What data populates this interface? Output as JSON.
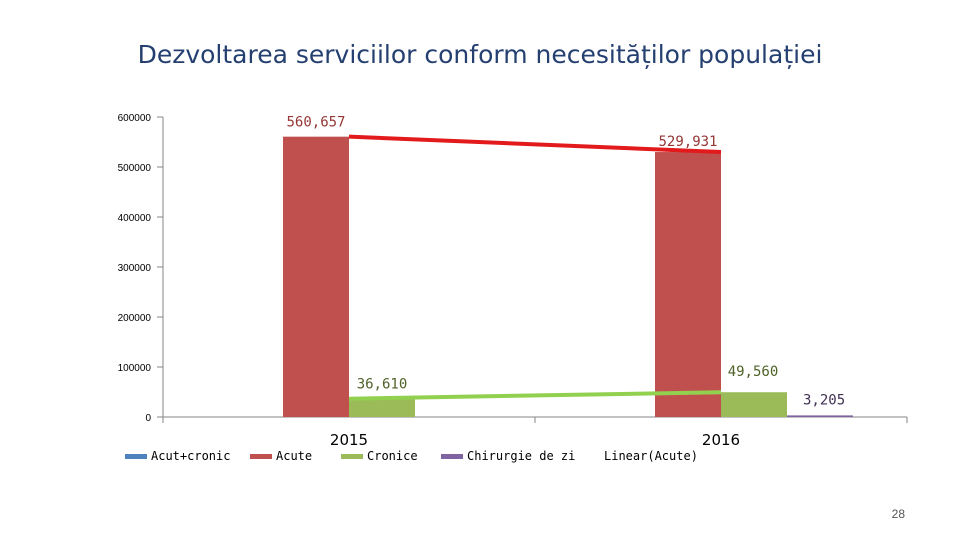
{
  "title": "Dezvoltarea serviciilor conform necesităților populației",
  "page_number": "28",
  "chart_data": {
    "type": "bar",
    "categories": [
      "2015",
      "2016"
    ],
    "y_ticks": [
      "600000",
      "500000",
      "400000",
      "300000",
      "200000",
      "100000",
      "0"
    ],
    "ylim": [
      0,
      600000
    ],
    "grid": false,
    "legend_position": "bottom",
    "series": [
      {
        "name": "Acut+cronic",
        "color": "#4f81bd",
        "values": [
          null,
          null
        ],
        "labels": [
          "",
          ""
        ]
      },
      {
        "name": "Acute",
        "color": "#c0504d",
        "values": [
          560657,
          529931
        ],
        "labels": [
          "560,657",
          "529,931"
        ]
      },
      {
        "name": "Cronice",
        "color": "#9bbb59",
        "values": [
          36610,
          49560
        ],
        "labels": [
          "36,610",
          "49,560"
        ]
      },
      {
        "name": "Chirurgie de zi",
        "color": "#8064a2",
        "values": [
          null,
          3205
        ],
        "labels": [
          "",
          "3,205"
        ]
      }
    ],
    "trendlines": [
      {
        "name": "Linear(Acute)",
        "color": "#e31a1c",
        "from": 560657,
        "to": 529931
      },
      {
        "name": "",
        "color": "#92d050",
        "from": 36610,
        "to": 49560
      }
    ],
    "legend": [
      "Acut+cronic",
      "Acute",
      "Cronice",
      "Chirurgie de zi",
      "Linear(Acute)"
    ]
  }
}
